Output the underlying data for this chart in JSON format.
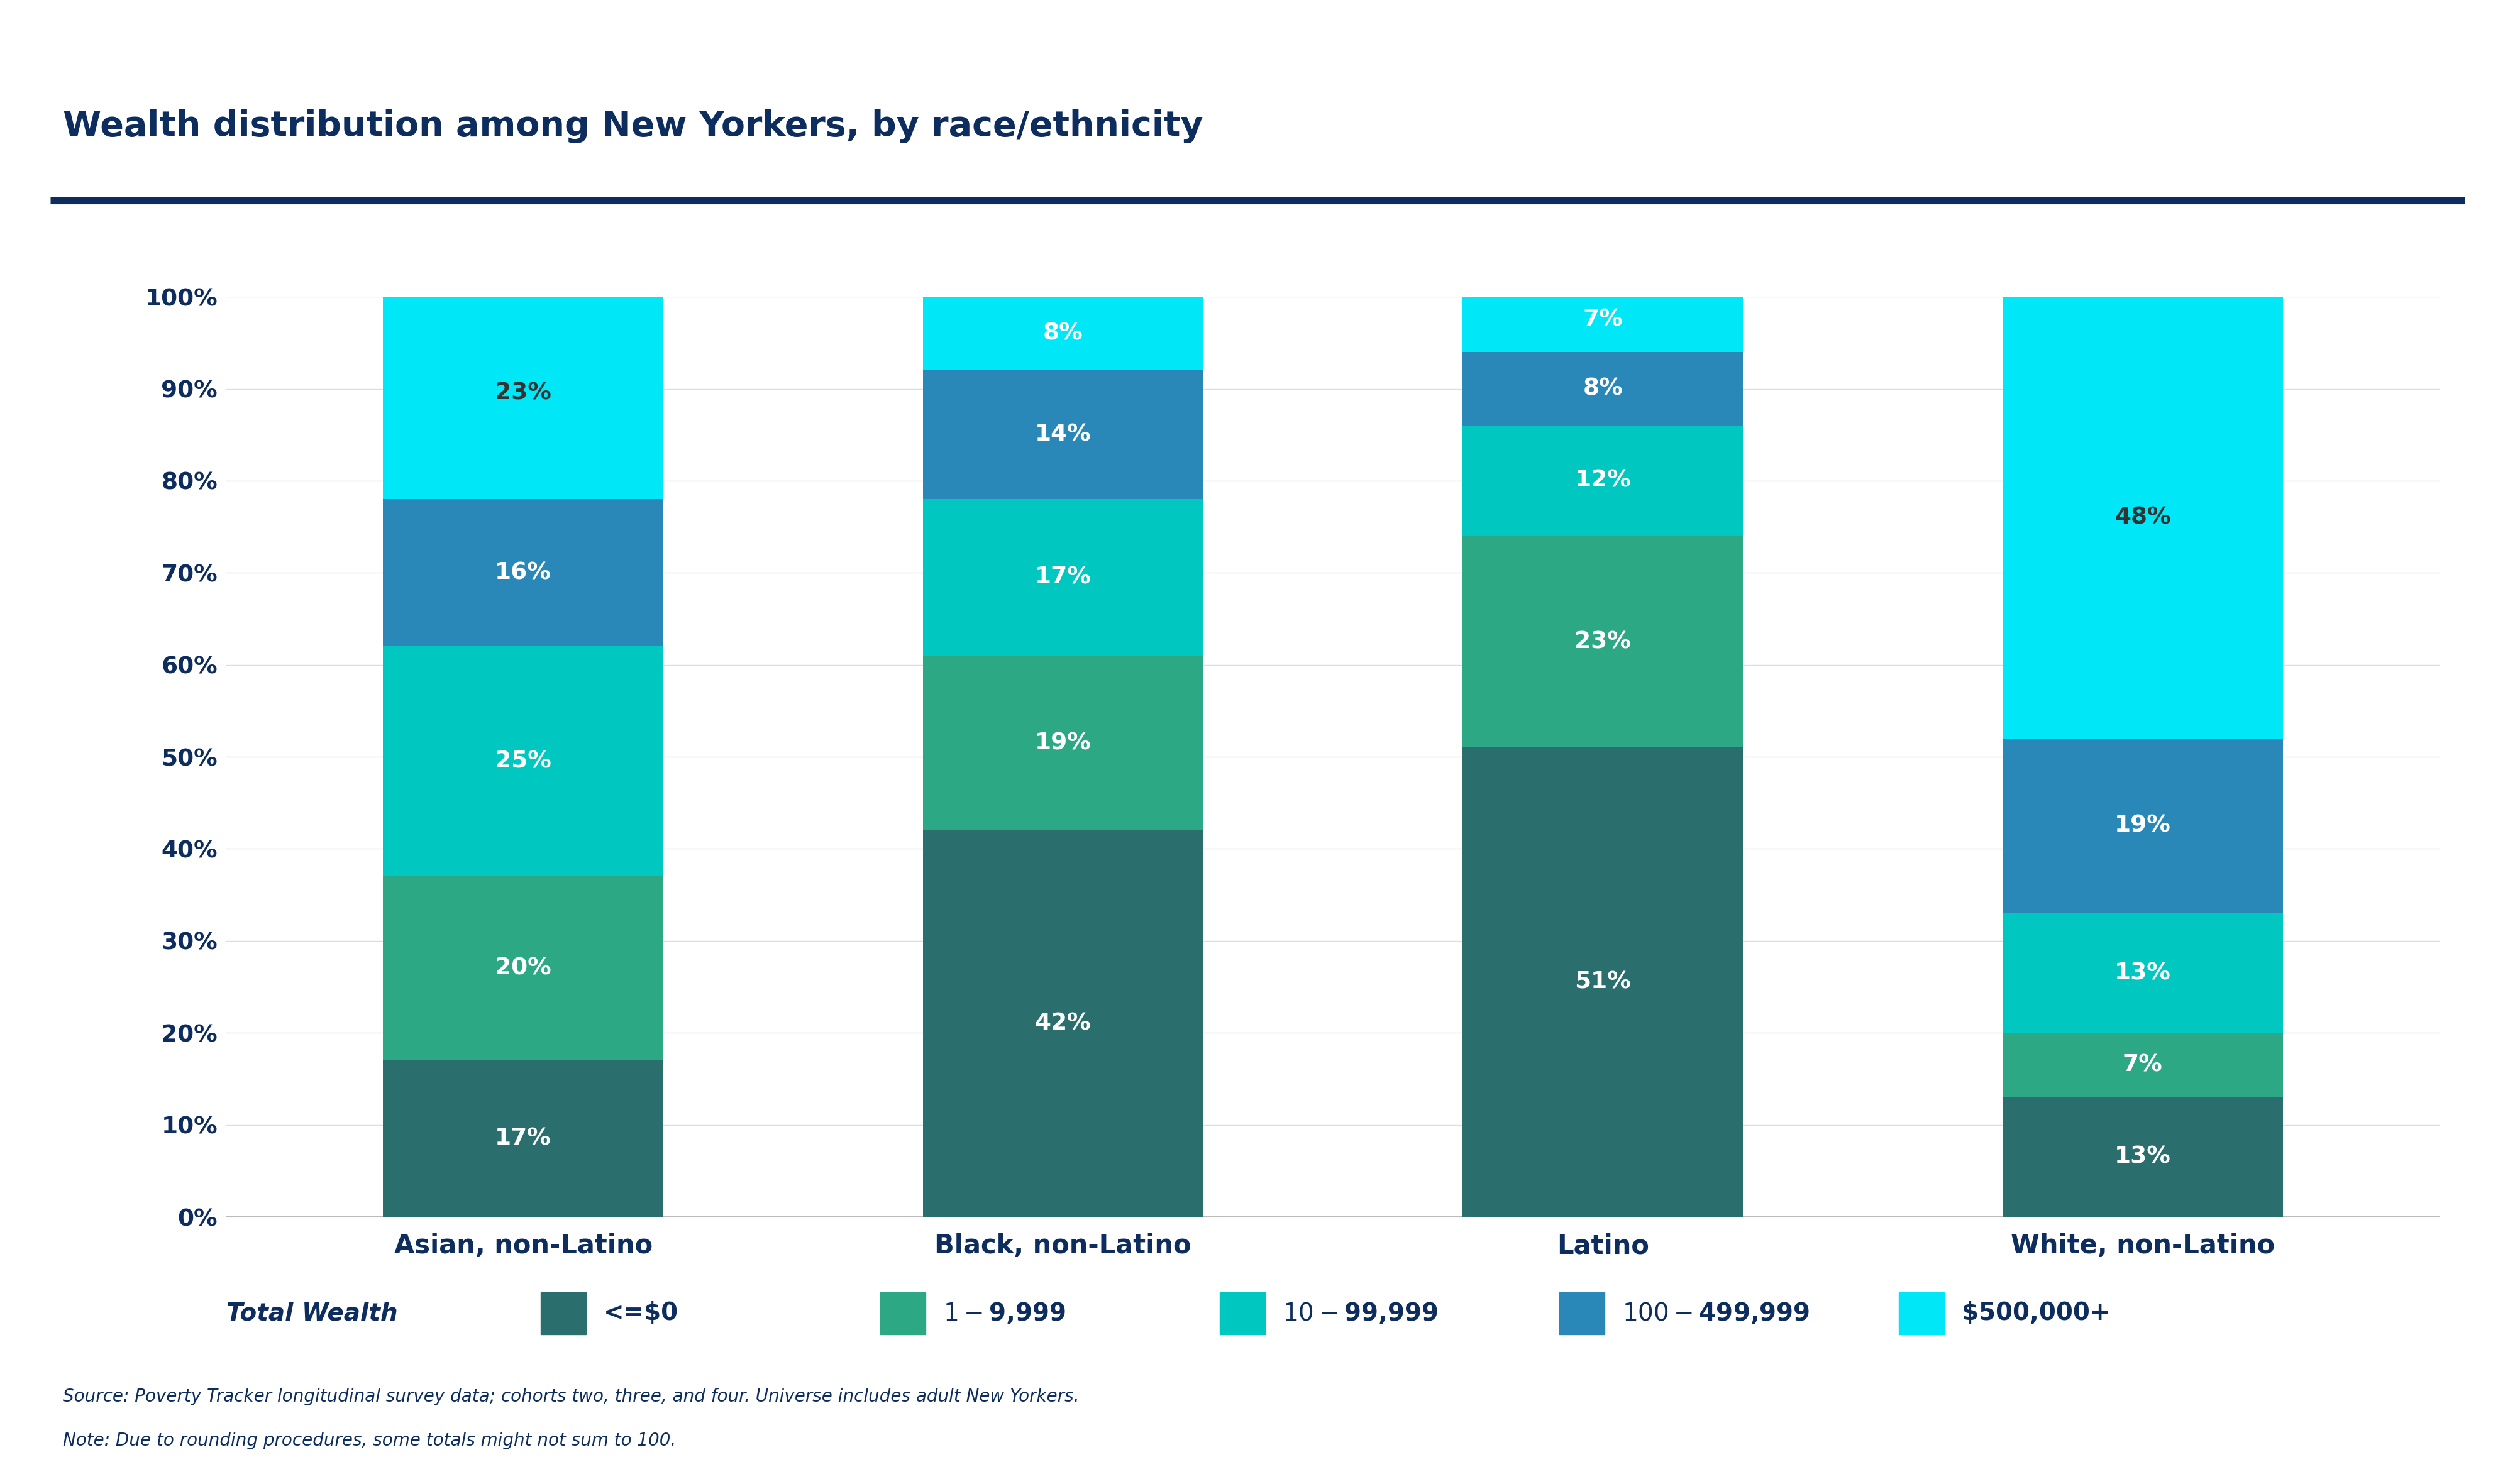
{
  "title": "Wealth distribution among New Yorkers, by race/ethnicity",
  "categories": [
    "Asian, non-Latino",
    "Black, non-Latino",
    "Latino",
    "White, non-Latino"
  ],
  "segments": [
    {
      "label": "<=$0",
      "color": "#2a6e6e",
      "values": [
        17,
        42,
        51,
        13
      ]
    },
    {
      "label": "$1-$9,999",
      "color": "#2da884",
      "values": [
        20,
        19,
        23,
        7
      ]
    },
    {
      "label": "$10-$99,999",
      "color": "#00c8c0",
      "values": [
        25,
        17,
        12,
        13
      ]
    },
    {
      "label": "$100-$499,999",
      "color": "#2988b8",
      "values": [
        16,
        14,
        8,
        19
      ]
    },
    {
      "label": "$500,000+",
      "color": "#00e8f8",
      "values": [
        23,
        8,
        7,
        48
      ]
    }
  ],
  "label_colors": [
    [
      "white",
      "white",
      "white",
      "white"
    ],
    [
      "white",
      "white",
      "white",
      "white"
    ],
    [
      "white",
      "white",
      "white",
      "white"
    ],
    [
      "white",
      "white",
      "white",
      "white"
    ],
    [
      "#333333",
      "white",
      "white",
      "#333333"
    ]
  ],
  "legend_prefix": "Total Wealth",
  "source_text": "Source: Poverty Tracker longitudinal survey data; cohorts two, three, and four. Universe includes adult New Yorkers.",
  "note_text": "Note: Due to rounding procedures, some totals might not sum to 100.",
  "header_bar_color": "#0d2d5e",
  "title_color": "#0d2d5e",
  "tick_label_color": "#0d2d5e",
  "legend_text_color": "#0d2d5e",
  "source_color": "#0d2d5e",
  "background_color": "#ffffff",
  "bar_width": 0.52,
  "ylim": [
    0,
    100
  ],
  "yticks": [
    0,
    10,
    20,
    30,
    40,
    50,
    60,
    70,
    80,
    90,
    100
  ],
  "ytick_labels": [
    "0%",
    "10%",
    "20%",
    "30%",
    "40%",
    "50%",
    "60%",
    "70%",
    "80%",
    "90%",
    "100%"
  ]
}
